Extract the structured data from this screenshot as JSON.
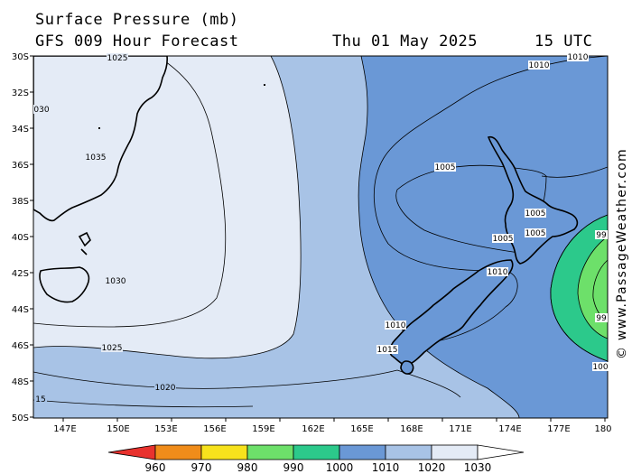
{
  "header": {
    "title": "Surface Pressure (mb)",
    "forecast": "GFS 009 Hour Forecast",
    "date": "Thu 01 May 2025",
    "time": "15 UTC"
  },
  "credit": "© www.PassageWeather.com",
  "map": {
    "lat_ticks": [
      "30S",
      "32S",
      "34S",
      "36S",
      "38S",
      "40S",
      "42S",
      "44S",
      "46S",
      "48S",
      "50S"
    ],
    "lon_ticks": [
      "147E",
      "150E",
      "153E",
      "156E",
      "159E",
      "162E",
      "165E",
      "168E",
      "171E",
      "174E",
      "177E",
      "180"
    ],
    "isobar_labels": [
      {
        "id": "iso-1025-top",
        "text": "1025"
      },
      {
        "id": "iso-1030-tl",
        "text": "030"
      },
      {
        "id": "iso-1035",
        "text": "1035"
      },
      {
        "id": "iso-1030-tas",
        "text": "1030"
      },
      {
        "id": "iso-1025-s",
        "text": "1025"
      },
      {
        "id": "iso-1020",
        "text": "1020"
      },
      {
        "id": "iso-15",
        "text": "15"
      },
      {
        "id": "iso-1010-top",
        "text": "1010"
      },
      {
        "id": "iso-1010-tr",
        "text": "1010"
      },
      {
        "id": "iso-1005-a",
        "text": "1005"
      },
      {
        "id": "iso-1005-b",
        "text": "1005"
      },
      {
        "id": "iso-1005-c",
        "text": "1005"
      },
      {
        "id": "iso-1005-d",
        "text": "1005"
      },
      {
        "id": "iso-1010-si",
        "text": "1010"
      },
      {
        "id": "iso-1010-fj",
        "text": "1010"
      },
      {
        "id": "iso-1015",
        "text": "1015"
      },
      {
        "id": "iso-99",
        "text": "99"
      },
      {
        "id": "iso-99x",
        "text": "99"
      },
      {
        "id": "iso-100",
        "text": "100"
      }
    ]
  },
  "legend": {
    "labels": [
      "960",
      "970",
      "980",
      "990",
      "1000",
      "1010",
      "1020",
      "1030"
    ],
    "colors": [
      "#e8322e",
      "#f08c1a",
      "#f7e21c",
      "#6de06a",
      "#2cc98b",
      "#6a98d6",
      "#a8c3e6",
      "#e4ebf6"
    ]
  }
}
